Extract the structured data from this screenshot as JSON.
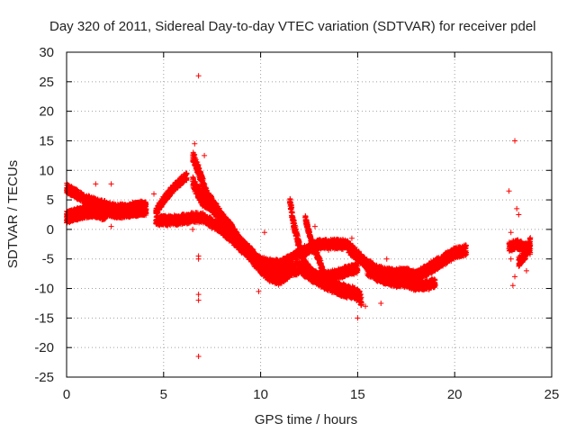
{
  "chart_data": {
    "type": "scatter",
    "title": "Day 320 of 2011, Sidereal Day-to-day VTEC variation (SDTVAR) for receiver pdel",
    "xlabel": "GPS time / hours",
    "ylabel": "SDTVAR / TECUs",
    "xlim": [
      0,
      25
    ],
    "ylim": [
      -25,
      30
    ],
    "xticks": [
      0,
      5,
      10,
      15,
      20,
      25
    ],
    "yticks": [
      -25,
      -20,
      -15,
      -10,
      -5,
      0,
      5,
      10,
      15,
      20,
      25,
      30
    ],
    "grid": true,
    "marker": "+",
    "color": "#ff0000",
    "tracks": [
      {
        "name": "track-a",
        "points": [
          [
            0.0,
            7.0
          ],
          [
            0.5,
            6.0
          ],
          [
            1.0,
            5.0
          ],
          [
            1.5,
            4.5
          ],
          [
            2.0,
            4.0
          ],
          [
            2.5,
            3.5
          ],
          [
            3.0,
            3.5
          ],
          [
            3.5,
            3.8
          ],
          [
            4.1,
            4.0
          ]
        ],
        "spread": 1.5
      },
      {
        "name": "track-b",
        "points": [
          [
            0.0,
            2.5
          ],
          [
            0.5,
            3.0
          ],
          [
            1.0,
            3.5
          ],
          [
            1.5,
            3.5
          ],
          [
            2.0,
            3.0
          ],
          [
            2.5,
            2.5
          ],
          [
            3.0,
            2.5
          ],
          [
            3.5,
            2.8
          ],
          [
            4.1,
            3.0
          ]
        ],
        "spread": 1.0
      },
      {
        "name": "track-c",
        "points": [
          [
            0.0,
            1.5
          ],
          [
            0.5,
            2.0
          ],
          [
            1.0,
            2.5
          ],
          [
            1.5,
            2.5
          ],
          [
            2.0,
            2.0
          ]
        ],
        "spread": 0.8
      },
      {
        "name": "track-d",
        "points": [
          [
            4.6,
            3.0
          ],
          [
            5.0,
            5.0
          ],
          [
            5.5,
            7.0
          ],
          [
            6.0,
            8.5
          ],
          [
            6.2,
            9.0
          ]
        ],
        "spread": 1.2
      },
      {
        "name": "track-e",
        "points": [
          [
            4.6,
            1.5
          ],
          [
            5.5,
            1.5
          ],
          [
            6.5,
            2.0
          ],
          [
            7.0,
            2.0
          ],
          [
            8.0,
            0.0
          ],
          [
            9.0,
            -3.0
          ],
          [
            10.0,
            -5.5
          ],
          [
            11.0,
            -6.0
          ],
          [
            12.0,
            -4.0
          ],
          [
            13.0,
            -2.5
          ],
          [
            14.0,
            -2.5
          ],
          [
            14.5,
            -2.5
          ]
        ],
        "spread": 1.5
      },
      {
        "name": "track-f",
        "points": [
          [
            6.5,
            8.0
          ],
          [
            7.0,
            5.0
          ],
          [
            7.5,
            4.0
          ],
          [
            8.0,
            1.5
          ],
          [
            8.5,
            -1.0
          ],
          [
            9.0,
            -2.5
          ],
          [
            9.5,
            -4.0
          ],
          [
            10.0,
            -6.0
          ],
          [
            10.5,
            -7.0
          ],
          [
            11.0,
            -7.5
          ],
          [
            11.5,
            -7.0
          ],
          [
            12.0,
            -6.5
          ],
          [
            12.5,
            -7.5
          ],
          [
            13.0,
            -8.5
          ],
          [
            13.5,
            -9.5
          ],
          [
            14.0,
            -10.0
          ],
          [
            14.5,
            -10.5
          ],
          [
            15.0,
            -11.0
          ],
          [
            15.2,
            -12.0
          ]
        ],
        "spread": 2.0
      },
      {
        "name": "track-g",
        "points": [
          [
            6.5,
            12.5
          ],
          [
            6.8,
            10.0
          ],
          [
            7.2,
            6.0
          ],
          [
            7.6,
            4.0
          ],
          [
            8.0,
            2.0
          ],
          [
            8.5,
            0.0
          ],
          [
            9.0,
            -2.5
          ],
          [
            9.5,
            -4.5
          ],
          [
            10.0,
            -6.5
          ],
          [
            10.5,
            -8.0
          ],
          [
            11.0,
            -8.5
          ],
          [
            11.4,
            -7.5
          ]
        ],
        "spread": 1.8
      },
      {
        "name": "track-h",
        "points": [
          [
            11.5,
            5.0
          ],
          [
            11.7,
            1.0
          ],
          [
            12.0,
            -3.0
          ],
          [
            12.3,
            -6.0
          ],
          [
            12.6,
            -7.5
          ],
          [
            13.0,
            -8.0
          ],
          [
            13.5,
            -8.0
          ],
          [
            14.0,
            -7.5
          ],
          [
            14.5,
            -7.0
          ],
          [
            15.0,
            -6.5
          ]
        ],
        "spread": 1.6
      },
      {
        "name": "track-i",
        "points": [
          [
            12.3,
            2.0
          ],
          [
            12.6,
            -2.0
          ],
          [
            13.0,
            -5.0
          ],
          [
            13.2,
            -7.0
          ],
          [
            13.5,
            -9.0
          ],
          [
            14.0,
            -10.5
          ],
          [
            14.5,
            -11.0
          ]
        ],
        "spread": 1.2
      },
      {
        "name": "track-j",
        "points": [
          [
            14.5,
            -3.0
          ],
          [
            15.0,
            -4.5
          ],
          [
            15.5,
            -6.0
          ],
          [
            16.0,
            -7.0
          ],
          [
            16.5,
            -7.5
          ],
          [
            17.0,
            -7.5
          ],
          [
            17.5,
            -7.5
          ],
          [
            18.0,
            -8.0
          ],
          [
            18.5,
            -7.0
          ],
          [
            19.0,
            -6.0
          ],
          [
            19.5,
            -5.0
          ],
          [
            20.0,
            -4.0
          ],
          [
            20.6,
            -3.5
          ]
        ],
        "spread": 1.8
      },
      {
        "name": "track-k",
        "points": [
          [
            15.5,
            -7.0
          ],
          [
            16.0,
            -8.0
          ],
          [
            16.5,
            -8.5
          ],
          [
            17.0,
            -9.0
          ],
          [
            17.5,
            -9.0
          ],
          [
            18.0,
            -9.5
          ],
          [
            18.5,
            -9.5
          ],
          [
            19.0,
            -9.0
          ]
        ],
        "spread": 1.5
      },
      {
        "name": "track-l",
        "points": [
          [
            22.8,
            -3.0
          ],
          [
            23.2,
            -2.5
          ],
          [
            23.6,
            -3.0
          ],
          [
            23.9,
            -3.5
          ]
        ],
        "spread": 1.5
      },
      {
        "name": "track-m",
        "points": [
          [
            23.3,
            -5.5
          ],
          [
            23.6,
            -4.5
          ],
          [
            23.9,
            -2.0
          ]
        ],
        "spread": 1.5
      }
    ],
    "outliers": [
      [
        6.8,
        26.0
      ],
      [
        6.6,
        14.5
      ],
      [
        7.1,
        12.5
      ],
      [
        6.8,
        -5.0
      ],
      [
        6.8,
        -4.5
      ],
      [
        6.8,
        -11.0
      ],
      [
        6.8,
        -12.0
      ],
      [
        6.8,
        -21.5
      ],
      [
        6.2,
        1.0
      ],
      [
        6.5,
        0.0
      ],
      [
        4.5,
        6.0
      ],
      [
        2.3,
        7.7
      ],
      [
        1.5,
        7.7
      ],
      [
        1.5,
        2.0
      ],
      [
        2.3,
        0.5
      ],
      [
        1.0,
        3.0
      ],
      [
        10.2,
        -0.5
      ],
      [
        9.9,
        -10.5
      ],
      [
        12.8,
        0.5
      ],
      [
        11.3,
        -7.0
      ],
      [
        13.5,
        -3.5
      ],
      [
        16.5,
        -5.0
      ],
      [
        14.7,
        -1.5
      ],
      [
        15.4,
        -13.0
      ],
      [
        15.0,
        -15.0
      ],
      [
        16.2,
        -12.5
      ],
      [
        22.8,
        6.5
      ],
      [
        23.1,
        15.0
      ],
      [
        23.0,
        -9.5
      ],
      [
        23.1,
        -8.0
      ],
      [
        23.2,
        3.5
      ],
      [
        23.3,
        2.5
      ],
      [
        22.9,
        -0.5
      ],
      [
        22.9,
        -5.0
      ],
      [
        23.7,
        -7.0
      ]
    ]
  }
}
